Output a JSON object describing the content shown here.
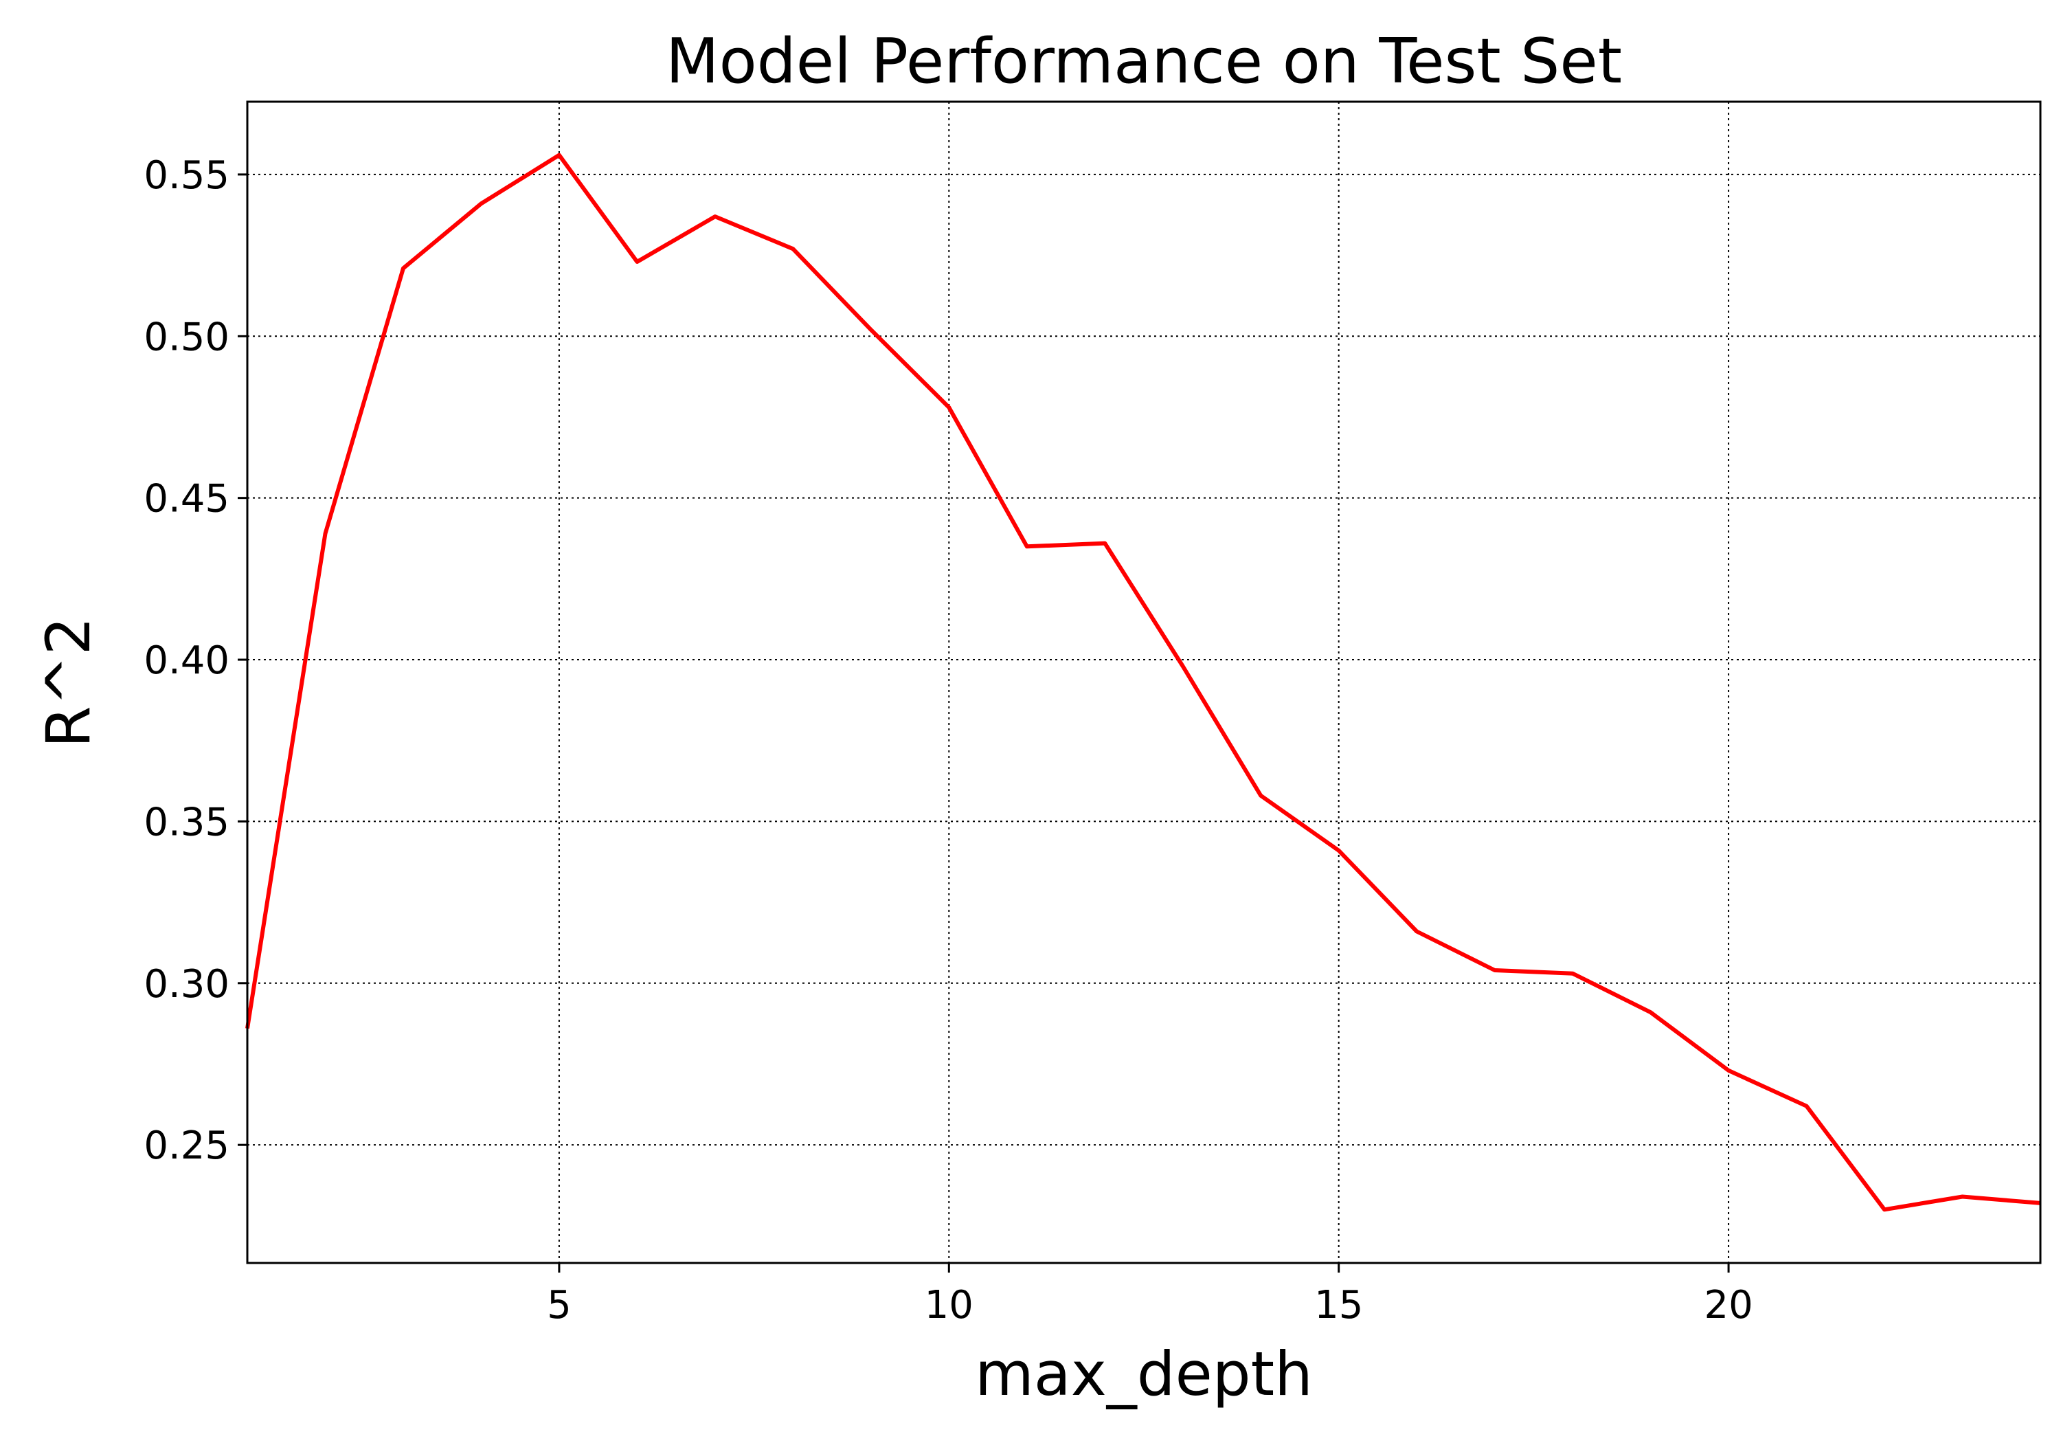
{
  "chart_data": {
    "type": "line",
    "title": "Model Performance on Test Set",
    "xlabel": "max_depth",
    "ylabel": "R^2",
    "xlim": [
      1,
      24
    ],
    "ylim": [
      0.2135,
      0.5725
    ],
    "xticks": [
      5,
      10,
      15,
      20
    ],
    "yticks": [
      0.25,
      0.3,
      0.35,
      0.4,
      0.45,
      0.5,
      0.55
    ],
    "ytick_labels": [
      "0.25",
      "0.30",
      "0.35",
      "0.40",
      "0.45",
      "0.50",
      "0.55"
    ],
    "grid": true,
    "series": [
      {
        "color": "#ff0000",
        "x": [
          1,
          2,
          3,
          4,
          5,
          6,
          7,
          8,
          9,
          10,
          11,
          12,
          13,
          14,
          15,
          16,
          17,
          18,
          19,
          20,
          21,
          22,
          23,
          24
        ],
        "y": [
          0.286,
          0.439,
          0.521,
          0.541,
          0.556,
          0.523,
          0.537,
          0.527,
          0.502,
          0.478,
          0.435,
          0.436,
          0.398,
          0.358,
          0.341,
          0.316,
          0.304,
          0.303,
          0.291,
          0.273,
          0.262,
          0.23,
          0.234,
          0.232
        ]
      }
    ]
  }
}
